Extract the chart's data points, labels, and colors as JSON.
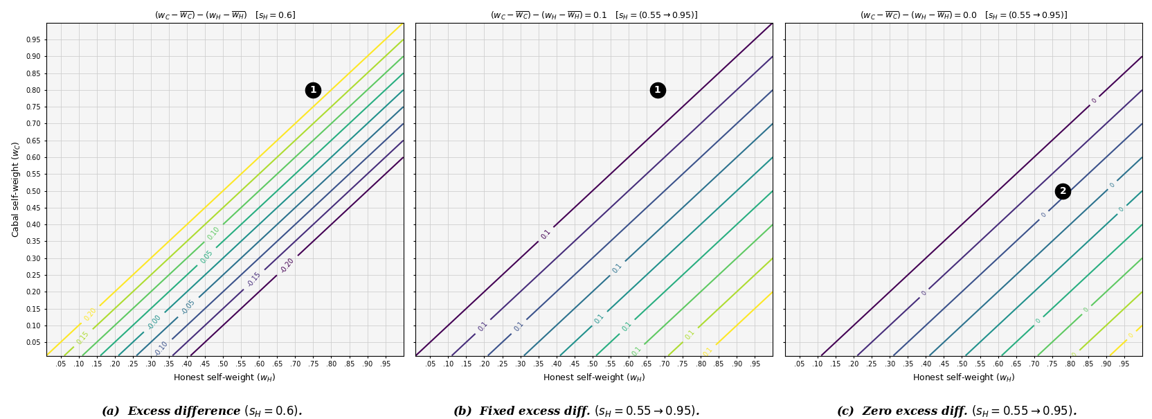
{
  "panel_a": {
    "title": "$(w_C - \\overline{w_C}) - (w_H - \\overline{w_H})$   $[s_H = 0.6]$",
    "sH": 0.6,
    "type": "contour_map",
    "levels": [
      -0.2,
      -0.15,
      -0.1,
      -0.05,
      0.0,
      0.05,
      0.1,
      0.15,
      0.2
    ]
  },
  "panel_b": {
    "title": "$(w_C - \\overline{w_C}) - (w_H - \\overline{w_H}) = 0.1$   $[s_H = (0.55\\to0.95)]$",
    "target_value": 0.1,
    "type": "contour_lines",
    "sH_range": [
      0.55,
      0.6,
      0.65,
      0.7,
      0.75,
      0.8,
      0.85,
      0.9,
      0.95
    ]
  },
  "panel_c": {
    "title": "$(w_C - \\overline{w_C}) - (w_H - \\overline{w_H}) = 0.0$   $[s_H = (0.55\\to0.95)]$",
    "target_value": 0.0,
    "type": "contour_lines",
    "sH_range": [
      0.55,
      0.6,
      0.65,
      0.7,
      0.75,
      0.8,
      0.85,
      0.9,
      0.95
    ]
  },
  "xlabel": "Honest self-weight $(w_H)$",
  "ylabel": "Cabal self-weight $(w_C)$",
  "xlim": [
    0.01,
    1.0
  ],
  "ylim": [
    0.01,
    1.0
  ],
  "xticks": [
    0.05,
    0.1,
    0.15,
    0.2,
    0.25,
    0.3,
    0.35,
    0.4,
    0.45,
    0.5,
    0.55,
    0.6,
    0.65,
    0.7,
    0.75,
    0.8,
    0.85,
    0.9,
    0.95
  ],
  "yticks": [
    0.05,
    0.1,
    0.15,
    0.2,
    0.25,
    0.3,
    0.35,
    0.4,
    0.45,
    0.5,
    0.55,
    0.6,
    0.65,
    0.7,
    0.75,
    0.8,
    0.85,
    0.9,
    0.95
  ],
  "caption_a": "(a)  Excess difference $(s_H = 0.6)$.",
  "caption_b": "(b)  Fixed excess diff. $(s_H = 0.55 \\to 0.95)$.",
  "caption_c": "(c)  Zero excess diff. $(s_H = 0.55 \\to 0.95)$.",
  "background_color": "#f5f5f5",
  "grid_color": "#cccccc"
}
